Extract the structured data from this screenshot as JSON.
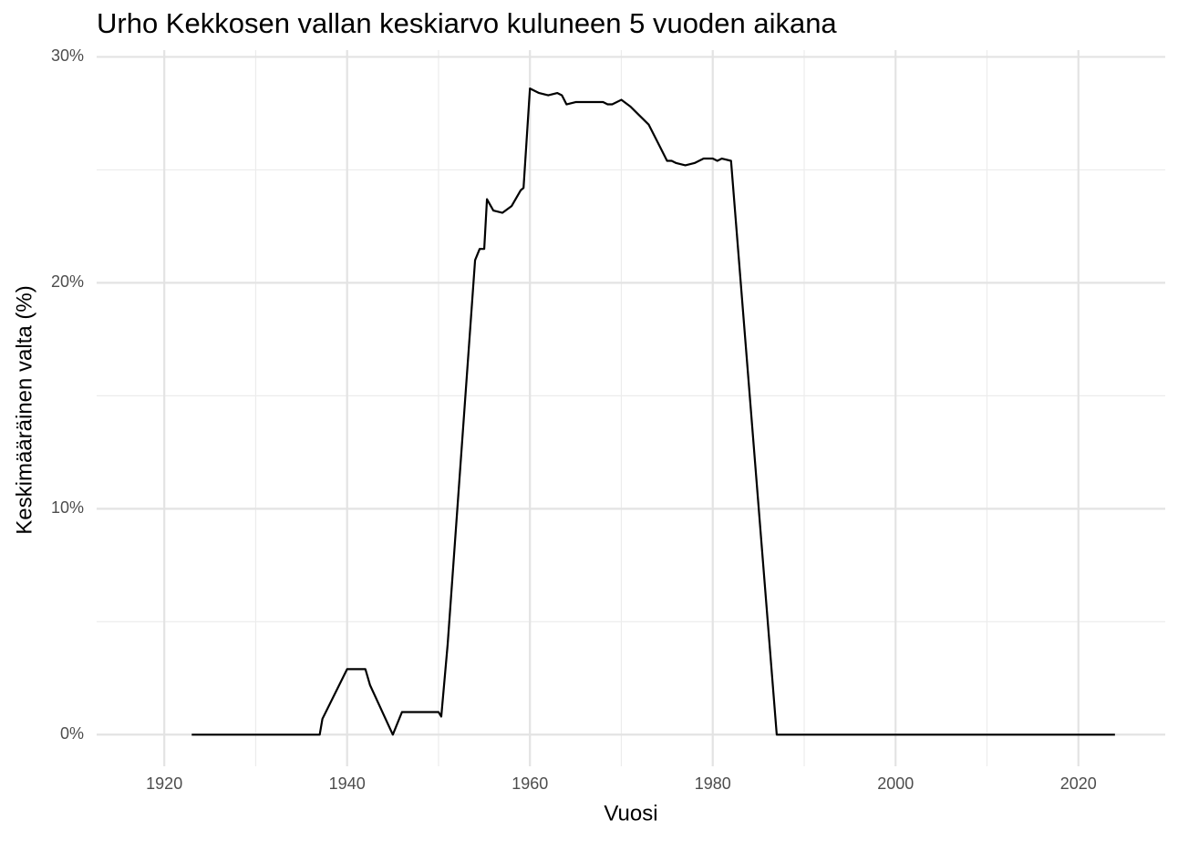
{
  "chart_data": {
    "type": "line",
    "title": "Urho Kekkosen vallan keskiarvo kuluneen 5 vuoden aikana",
    "x_label": "Vuosi",
    "y_label": "Keskimääräinen valta (%)",
    "x": [
      1923,
      1937,
      1937.3,
      1940,
      1942,
      1942.5,
      1945,
      1946,
      1950,
      1950.3,
      1951,
      1954,
      1954.5,
      1955,
      1955.3,
      1956,
      1957,
      1958,
      1959,
      1959.3,
      1960,
      1961,
      1962,
      1963,
      1963.5,
      1964,
      1965,
      1968,
      1968.5,
      1969,
      1970,
      1971,
      1972,
      1973,
      1974,
      1975,
      1975.5,
      1976,
      1977,
      1978,
      1979,
      1980,
      1980.5,
      1981,
      1982,
      1987,
      2024
    ],
    "values": [
      0,
      0,
      0.7,
      2.9,
      2.9,
      2.2,
      0,
      1.0,
      1.0,
      0.8,
      4,
      21,
      21.5,
      21.5,
      23.7,
      23.2,
      23.1,
      23.4,
      24.1,
      24.2,
      28.6,
      28.4,
      28.3,
      28.4,
      28.3,
      27.9,
      28.0,
      28.0,
      27.9,
      27.9,
      28.1,
      27.8,
      27.4,
      27.0,
      26.2,
      25.4,
      25.4,
      25.3,
      25.2,
      25.3,
      25.5,
      25.5,
      25.4,
      25.5,
      25.4,
      0,
      0
    ],
    "color": "#000000",
    "xlim": [
      1912.6,
      2029.5
    ],
    "ylim": [
      -1.4,
      30.3
    ],
    "xticks": [
      1920,
      1940,
      1960,
      1980,
      2000,
      2020
    ],
    "xminorticks": [
      1930,
      1950,
      1970,
      1990,
      2010
    ],
    "yticks": [
      {
        "value": 0,
        "label": "0%"
      },
      {
        "value": 10,
        "label": "10%"
      },
      {
        "value": 20,
        "label": "20%"
      },
      {
        "value": 30,
        "label": "30%"
      }
    ],
    "yminorticks": [
      5,
      15,
      25
    ],
    "grid": true
  }
}
